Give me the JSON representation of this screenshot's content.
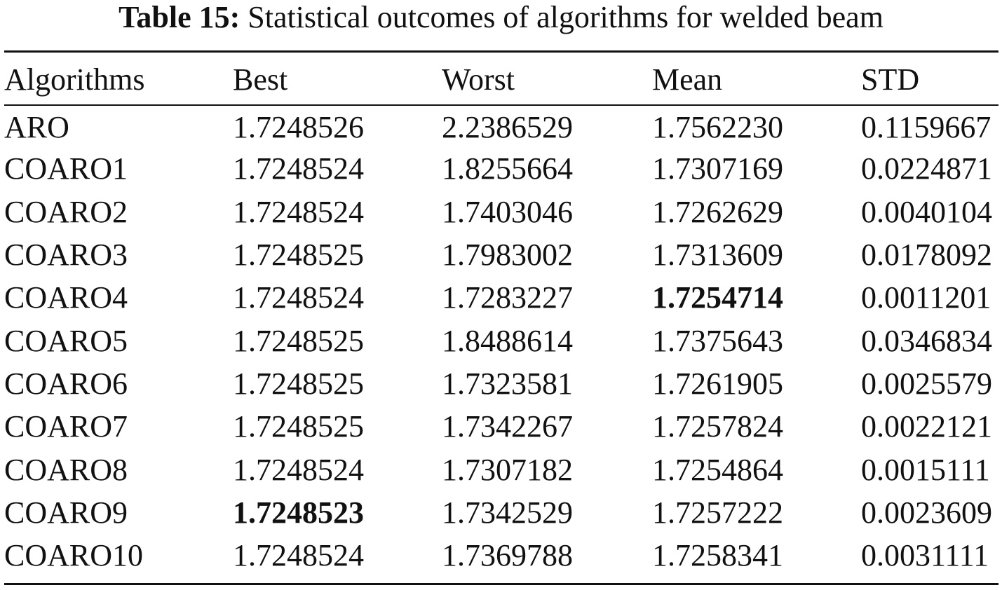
{
  "caption": {
    "label": "Table 15:",
    "text": "Statistical outcomes of algorithms for welded beam"
  },
  "table": {
    "headers": [
      "Algorithms",
      "Best",
      "Worst",
      "Mean",
      "STD"
    ],
    "rows": [
      {
        "algorithm": "ARO",
        "best": "1.7248526",
        "worst": "2.2386529",
        "mean": "1.7562230",
        "std": "0.1159667",
        "bold": []
      },
      {
        "algorithm": "COARO1",
        "best": "1.7248524",
        "worst": "1.8255664",
        "mean": "1.7307169",
        "std": "0.0224871",
        "bold": []
      },
      {
        "algorithm": "COARO2",
        "best": "1.7248524",
        "worst": "1.7403046",
        "mean": "1.7262629",
        "std": "0.0040104",
        "bold": []
      },
      {
        "algorithm": "COARO3",
        "best": "1.7248525",
        "worst": "1.7983002",
        "mean": "1.7313609",
        "std": "0.0178092",
        "bold": []
      },
      {
        "algorithm": "COARO4",
        "best": "1.7248524",
        "worst": "1.7283227",
        "mean": "1.7254714",
        "std": "0.0011201",
        "bold": [
          "mean"
        ]
      },
      {
        "algorithm": "COARO5",
        "best": "1.7248525",
        "worst": "1.8488614",
        "mean": "1.7375643",
        "std": "0.0346834",
        "bold": []
      },
      {
        "algorithm": "COARO6",
        "best": "1.7248525",
        "worst": "1.7323581",
        "mean": "1.7261905",
        "std": "0.0025579",
        "bold": []
      },
      {
        "algorithm": "COARO7",
        "best": "1.7248525",
        "worst": "1.7342267",
        "mean": "1.7257824",
        "std": "0.0022121",
        "bold": []
      },
      {
        "algorithm": "COARO8",
        "best": "1.7248524",
        "worst": "1.7307182",
        "mean": "1.7254864",
        "std": "0.0015111",
        "bold": []
      },
      {
        "algorithm": "COARO9",
        "best": "1.7248523",
        "worst": "1.7342529",
        "mean": "1.7257222",
        "std": "0.0023609",
        "bold": [
          "best"
        ]
      },
      {
        "algorithm": "COARO10",
        "best": "1.7248524",
        "worst": "1.7369788",
        "mean": "1.7258341",
        "std": "0.0031111",
        "bold": []
      }
    ]
  }
}
